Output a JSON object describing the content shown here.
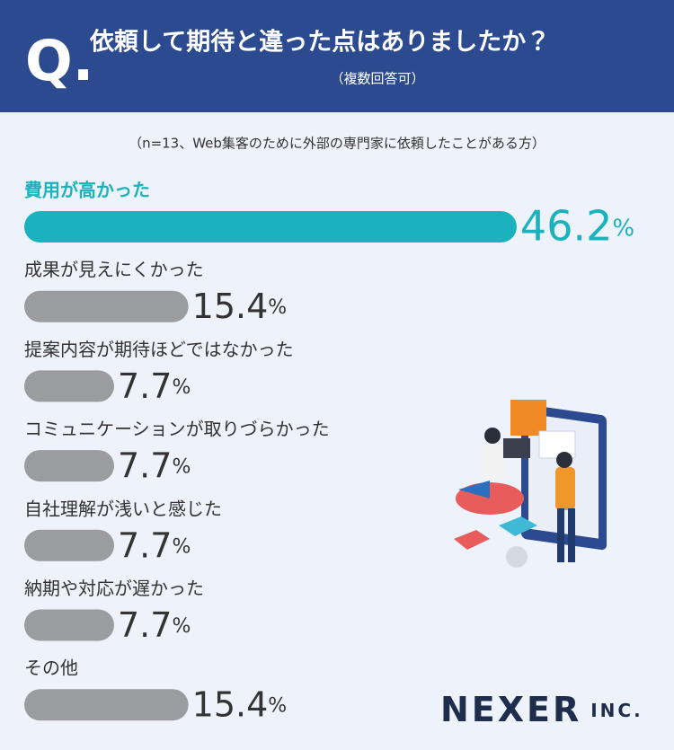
{
  "chart_data": {
    "type": "bar",
    "q_mark": "Q.",
    "title": "依頼して期待と違った点はありましたか？",
    "subtitle": "（複数回答可）",
    "note": "（n=13、Web集客のために外部の専門家に依頼したことがある方）",
    "categories": [
      "費用が高かった",
      "成果が見えにくかった",
      "提案内容が期待ほどではなかった",
      "コミュニケーションが取りづらかった",
      "自社理解が浅いと感じた",
      "納期や対応が遅かった",
      "その他"
    ],
    "values": [
      46.2,
      15.4,
      7.7,
      7.7,
      7.7,
      7.7,
      15.4
    ],
    "value_labels": [
      "46.2%",
      "15.4%",
      "7.7%",
      "7.7%",
      "7.7%",
      "7.7%",
      "15.4%"
    ],
    "colors": [
      "#1ab3bd",
      "#9b9ca0",
      "#9b9ca0",
      "#9b9ca0",
      "#9b9ca0",
      "#9b9ca0",
      "#9b9ca0"
    ],
    "brand": "NEXER INC."
  }
}
